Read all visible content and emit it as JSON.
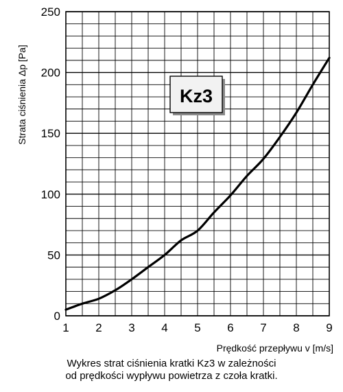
{
  "chart_data": {
    "type": "line",
    "ylabel": "Strata ciśnienia Δp [Pa]",
    "xlabel": "Prędkość przepływu v [m/s]",
    "annotation": "Kz3",
    "xlim": [
      1,
      9
    ],
    "ylim": [
      0,
      250
    ],
    "x_ticks": [
      "1",
      "2",
      "3",
      "4",
      "5",
      "6",
      "7",
      "8",
      "9"
    ],
    "y_ticks": [
      "0",
      "50",
      "100",
      "150",
      "200",
      "250"
    ],
    "grid": true,
    "series": [
      {
        "x": [
          1,
          1.5,
          2,
          2.5,
          3,
          3.5,
          4,
          4.5,
          5,
          5.5,
          6,
          6.5,
          7,
          7.5,
          8,
          8.5,
          9
        ],
        "y": [
          5,
          10,
          14,
          21,
          30,
          40,
          50,
          62,
          70,
          85,
          99,
          115,
          129,
          147,
          167,
          190,
          212
        ]
      }
    ]
  },
  "caption": {
    "line1": "Wykres strat ciśnienia kratki Kz3 w zależności",
    "line2": "od prędkości wypływu powietrza z czoła kratki."
  }
}
